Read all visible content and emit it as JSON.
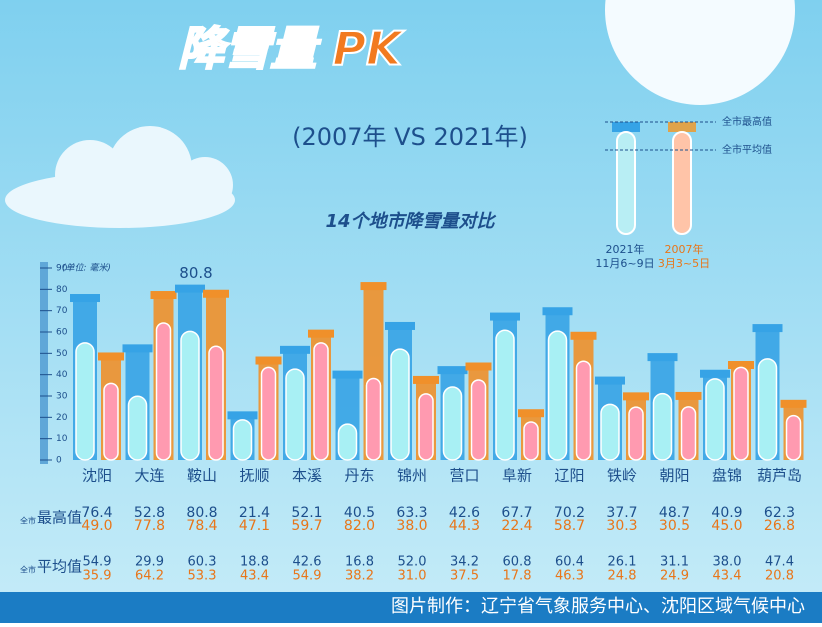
{
  "chart_data": {
    "type": "tube-bar",
    "title": "降雪量 PK",
    "subtitle": "(2007年 VS 2021年)",
    "chart_title": "14个地市降雪量对比",
    "unit": "(单位: 毫米)",
    "legend": {
      "max_label": "全市最高值",
      "avg_label": "全市平均值"
    },
    "row_labels": [
      {
        "prefix": "全市",
        "label": "最高值"
      },
      {
        "prefix": "全市",
        "label": "平均值"
      }
    ],
    "footer": "图片制作：辽宁省气象服务中心、沈阳区域气候中心",
    "categories": [
      "沈阳",
      "大连",
      "鞍山",
      "抚顺",
      "本溪",
      "丹东",
      "锦州",
      "营口",
      "阜新",
      "辽阳",
      "铁岭",
      "朝阳",
      "盘锦",
      "葫芦岛"
    ],
    "series": [
      {
        "name": "2021年",
        "dates": "11月6~9日",
        "color": "#36a3e6",
        "avg_color": "#a8f0f4",
        "values": [
          76.4,
          52.8,
          80.8,
          21.4,
          52.1,
          40.5,
          63.3,
          42.6,
          67.7,
          70.2,
          37.7,
          48.7,
          40.9,
          62.3
        ],
        "value_labels": [
          "76.4",
          "52.8",
          "80.8",
          "21.4",
          "52.1",
          "40.5",
          "63.3",
          "42.6",
          "67.7",
          "70.2",
          "37.7",
          "48.7",
          "40.9",
          "62.3"
        ],
        "avg_values": [
          54.9,
          29.9,
          60.3,
          18.8,
          42.6,
          16.8,
          52,
          34.2,
          60.8,
          60.4,
          26.1,
          31.1,
          38,
          47.4
        ],
        "avg_value_labels": [
          "54.9",
          "29.9",
          "60.3",
          "18.8",
          "42.6",
          "16.8",
          "52.0",
          "34.2",
          "60.8",
          "60.4",
          "26.1",
          "31.1",
          "38.0",
          "47.4"
        ]
      },
      {
        "name": "2007年",
        "dates": "3月3~5日",
        "color": "#f0902a",
        "avg_color": "#ff9ab0",
        "values": [
          49,
          77.8,
          78.4,
          47.1,
          59.7,
          82,
          38,
          44.3,
          22.4,
          58.7,
          30.3,
          30.5,
          45,
          26.8
        ],
        "value_labels": [
          "49.0",
          "77.8",
          "78.4",
          "47.1",
          "59.7",
          "82.0",
          "38.0",
          "44.3",
          "22.4",
          "58.7",
          "30.3",
          "30.5",
          "45.0",
          "26.8"
        ],
        "avg_values": [
          35.9,
          64.2,
          53.3,
          43.4,
          54.9,
          38.2,
          31,
          37.5,
          17.8,
          46.3,
          24.8,
          24.9,
          43.4,
          20.8
        ],
        "avg_value_labels": [
          "35.9",
          "64.2",
          "53.3",
          "43.4",
          "54.9",
          "38.2",
          "31.0",
          "37.5",
          "17.8",
          "46.3",
          "24.8",
          "24.9",
          "43.4",
          "20.8"
        ]
      }
    ],
    "ylim": [
      0,
      90
    ],
    "yticks": [
      0,
      10,
      20,
      30,
      40,
      50,
      60,
      70,
      80,
      90
    ]
  }
}
